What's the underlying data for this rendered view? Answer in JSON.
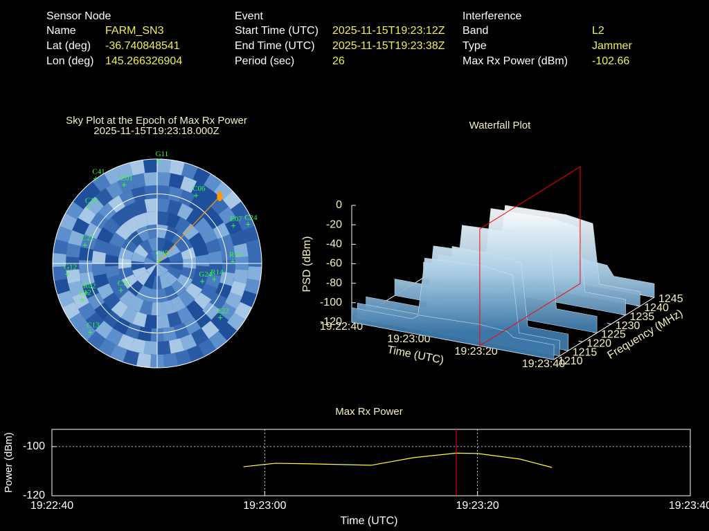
{
  "info": [
    {
      "heading": "Sensor Node",
      "rows": [
        [
          "Name",
          "FARM_SN3"
        ],
        [
          "Lat (deg)",
          "-36.740848541"
        ],
        [
          "Lon (deg)",
          "145.266326904"
        ]
      ]
    },
    {
      "heading": "Event",
      "rows": [
        [
          "Start Time (UTC)",
          "2025-11-15T19:23:12Z"
        ],
        [
          "End Time (UTC)",
          "2025-11-15T19:23:38Z"
        ],
        [
          "Period (sec)",
          "26"
        ]
      ]
    },
    {
      "heading": "Interference",
      "rows": [
        [
          "Band",
          "L2"
        ],
        [
          "Type",
          "Jammer"
        ],
        [
          "Max Rx Power (dBm)",
          "-102.66"
        ]
      ]
    }
  ],
  "chart_data": [
    {
      "type": "polar",
      "title": "Sky Plot at the Epoch of Max Rx Power",
      "subtitle": "2025-11-15T19:23:18.000Z",
      "rings": [
        0,
        30,
        60
      ],
      "color": "#33ff33",
      "satellites": [
        {
          "name": "G11",
          "az": 1,
          "el": 2
        },
        {
          "name": "G12",
          "az": 263,
          "el": 12
        },
        {
          "name": "C22",
          "az": 284,
          "el": 26
        },
        {
          "name": "C16",
          "az": 309,
          "el": 14
        },
        {
          "name": "C41",
          "az": 324,
          "el": 0
        },
        {
          "name": "E01",
          "az": 337,
          "el": 17
        },
        {
          "name": "E07",
          "az": 64,
          "el": 17
        },
        {
          "name": "C24",
          "az": 67,
          "el": 5
        },
        {
          "name": "R13",
          "az": 89,
          "el": 25
        },
        {
          "name": "R14",
          "az": 106,
          "el": 39
        },
        {
          "name": "E22",
          "az": 131,
          "el": 18
        },
        {
          "name": "C12",
          "az": 244,
          "el": 18
        },
        {
          "name": "C19",
          "az": 233,
          "el": 51
        },
        {
          "name": "G24",
          "az": 112,
          "el": 48
        },
        {
          "name": "C35",
          "az": 35,
          "el": 87
        },
        {
          "name": "C06",
          "az": 30,
          "el": 23
        },
        {
          "name": "R02",
          "az": 247,
          "el": 24
        },
        {
          "name": "C13",
          "az": 224,
          "el": 7
        }
      ],
      "source": {
        "az": 43,
        "el": 11,
        "color": "#ff9900"
      }
    },
    {
      "type": "surface3d",
      "title": "Waterfall Plot",
      "xlabel": "Time (UTC)",
      "ylabel": "Frequency (MHz)",
      "zlabel": "PSD (dBm)",
      "x": [
        "19:22:40",
        "19:22:58",
        "19:23:00",
        "19:23:18",
        "19:23:26",
        "19:23:28",
        "19:23:40"
      ],
      "y": [
        1210,
        1212,
        1215,
        1225,
        1235,
        1240,
        1245
      ],
      "z": [
        [
          -105,
          -104,
          -103,
          -103,
          -104,
          -105,
          -106
        ],
        [
          -105,
          -104,
          -103,
          -103,
          -104,
          -105,
          -106
        ],
        [
          -100,
          -45,
          -38,
          -35,
          -36,
          -42,
          -95
        ],
        [
          -98,
          -42,
          -35,
          -32,
          -34,
          -40,
          -94
        ],
        [
          -100,
          -46,
          -39,
          -37,
          -38,
          -44,
          -96
        ],
        [
          -105,
          -104,
          -103,
          -103,
          -104,
          -105,
          -106
        ],
        [
          -105,
          -104,
          -103,
          -103,
          -104,
          -105,
          -106
        ]
      ],
      "xlim": [
        "19:22:40",
        "19:23:40"
      ],
      "xticks": [
        "19:22:40",
        "19:23:00",
        "19:23:20",
        "19:23:40"
      ],
      "ylim": [
        1210,
        1245
      ],
      "yticks": [
        1210,
        1215,
        1220,
        1225,
        1230,
        1235,
        1240,
        1245
      ],
      "zlim": [
        -120,
        0
      ],
      "zticks": [
        0,
        -20,
        -40,
        -60,
        -80,
        -100,
        -120
      ],
      "marker_x": "19:23:18",
      "marker_color": "#ff0000"
    },
    {
      "type": "line",
      "title": "Max Rx Power",
      "xlabel": "Time (UTC)",
      "ylabel": "Power (dBm)",
      "x": [
        "19:22:58",
        "19:23:01",
        "19:23:04",
        "19:23:10",
        "19:23:14",
        "19:23:18",
        "19:23:20",
        "19:23:24",
        "19:23:27"
      ],
      "values": [
        -108.2,
        -106.8,
        -107.0,
        -107.6,
        -104.5,
        -102.66,
        -102.8,
        -105.1,
        -108.5
      ],
      "color": "#ffff33",
      "xlim": [
        "19:22:40",
        "19:23:40"
      ],
      "xticks": [
        "19:22:40",
        "19:23:00",
        "19:23:20",
        "19:23:40"
      ],
      "ylim": [
        -120,
        -93
      ],
      "yticks": [
        -120,
        -100
      ],
      "grid": true,
      "marker_x": "19:23:18",
      "marker_color": "#ff0000"
    }
  ]
}
